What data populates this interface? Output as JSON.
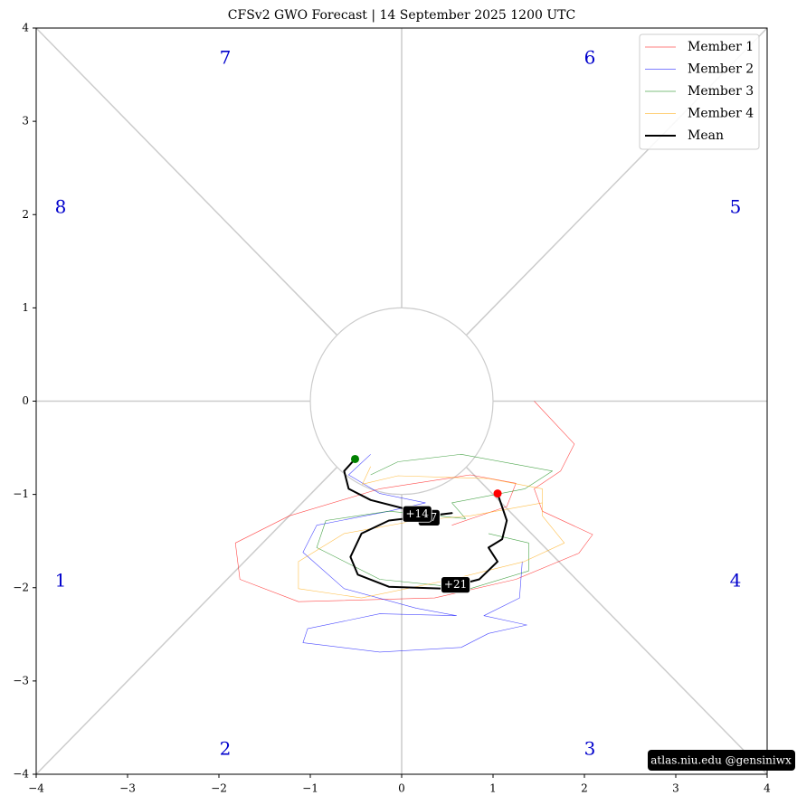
{
  "chart_data": {
    "type": "line",
    "title": "CFSv2 GWO Forecast  |  14  September  2025 1200 UTC",
    "xlim": [
      -4,
      4
    ],
    "ylim": [
      -4,
      4
    ],
    "xticks": [
      {
        "value": -4,
        "label": "−4"
      },
      {
        "value": -3,
        "label": "−3"
      },
      {
        "value": -2,
        "label": "−2"
      },
      {
        "value": -1,
        "label": "−1"
      },
      0,
      1,
      2,
      3,
      4
    ],
    "yticks": [
      {
        "value": -4,
        "label": "−4"
      },
      {
        "value": -3,
        "label": "−3"
      },
      {
        "value": -2,
        "label": "−2"
      },
      {
        "value": -1,
        "label": "−1"
      },
      0,
      1,
      2,
      3,
      4
    ],
    "legend": "upper right",
    "phase_labels": [
      "1",
      "2",
      "3",
      "4",
      "5",
      "6",
      "7",
      "8"
    ],
    "series": [
      {
        "name": "Member 1",
        "color": "#ff0000",
        "x": [
          1.45,
          1.89,
          1.74,
          1.45,
          1.54,
          2.09,
          1.94,
          1.25,
          0.36,
          -1.13,
          -1.77,
          -1.82,
          -1.23,
          -0.24,
          0.75,
          1.25,
          1.15,
          0.55
        ],
        "values": [
          0,
          -0.46,
          -0.75,
          -0.94,
          -1.18,
          -1.43,
          -1.63,
          -1.91,
          -2.11,
          -2.15,
          -1.91,
          -1.52,
          -1.23,
          -0.94,
          -0.79,
          -0.88,
          -1.13,
          -1.33
        ]
      },
      {
        "name": "Member 2",
        "color": "#0000ff",
        "x": [
          -0.34,
          -0.58,
          -0.24,
          0.26,
          -0.14,
          -0.93,
          -1.08,
          -0.63,
          0.16,
          0.6,
          -0.24,
          -1.03,
          -1.08,
          -0.24,
          0.65,
          0.95,
          1.37,
          0.9,
          1.29,
          1.32
        ],
        "values": [
          -0.57,
          -0.79,
          -0.99,
          -1.09,
          -1.18,
          -1.33,
          -1.62,
          -2.01,
          -2.22,
          -2.3,
          -2.28,
          -2.44,
          -2.59,
          -2.69,
          -2.64,
          -2.49,
          -2.4,
          -2.3,
          -2.11,
          -1.72
        ]
      },
      {
        "name": "Member 3",
        "color": "#008000",
        "x": [
          -0.34,
          -0.04,
          0.65,
          1.65,
          1.35,
          0.55,
          0.7,
          -0.14,
          -0.83,
          -0.93,
          -0.24,
          0.75,
          1.39,
          1.39,
          0.95
        ],
        "values": [
          -0.79,
          -0.65,
          -0.57,
          -0.75,
          -0.94,
          -1.09,
          -1.26,
          -1.18,
          -1.28,
          -1.57,
          -1.91,
          -2.01,
          -1.82,
          -1.52,
          -1.42
        ]
      },
      {
        "name": "Member 4",
        "color": "#ffa500",
        "x": [
          -0.34,
          -0.43,
          -0.04,
          0.95,
          1.54,
          1.54,
          1.78,
          1.34,
          0.55,
          -0.44,
          -1.13,
          -1.13,
          -0.63,
          0.16,
          0.75,
          1.54
        ],
        "values": [
          -0.7,
          -0.89,
          -0.8,
          -0.83,
          -0.94,
          -1.23,
          -1.52,
          -1.72,
          -1.91,
          -2.11,
          -2.01,
          -1.72,
          -1.42,
          -1.28,
          -1.23,
          -1.09
        ]
      },
      {
        "name": "Mean",
        "color": "#000000",
        "x": [
          -0.51,
          -0.63,
          -0.58,
          -0.34,
          0.06,
          0.31,
          0.55,
          -0.14,
          -0.44,
          -0.56,
          -0.48,
          -0.14,
          0.46,
          0.85,
          1.05,
          0.95,
          1.1,
          1.15,
          1.05
        ],
        "values": [
          -0.62,
          -0.75,
          -0.94,
          -1.06,
          -1.16,
          -1.23,
          -1.2,
          -1.28,
          -1.42,
          -1.67,
          -1.86,
          -1.99,
          -2.01,
          -1.91,
          -1.72,
          -1.57,
          -1.48,
          -1.28,
          -0.99
        ]
      }
    ],
    "annotations": [
      {
        "text": "+7",
        "x": 0.3,
        "y": -1.25
      },
      {
        "text": "+14",
        "x": 0.17,
        "y": -1.21
      },
      {
        "text": "+21",
        "x": 0.59,
        "y": -1.97
      }
    ],
    "watermark": "atlas.niu.edu  @gensiniwx"
  }
}
